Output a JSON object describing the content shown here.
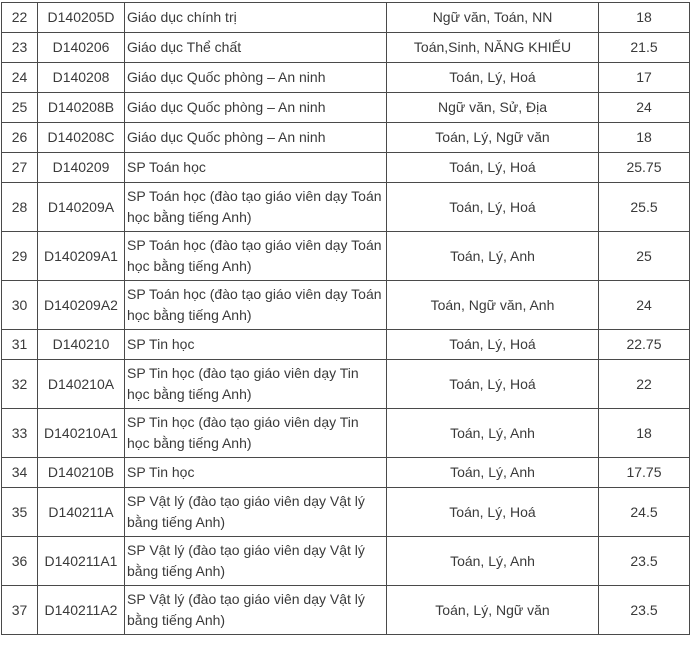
{
  "theme": {
    "border_color": "#4a4a4a",
    "text_color": "#3a3a3a",
    "background_color": "#ffffff"
  },
  "table": {
    "description": "university-admission-score-table",
    "columns": [
      "stt",
      "code",
      "major",
      "subjects",
      "score"
    ],
    "rows": [
      {
        "stt": "22",
        "code": "D140205D",
        "major": "Giáo dục chính trị",
        "subjects": "Ngữ văn, Toán, NN",
        "score": "18"
      },
      {
        "stt": "23",
        "code": "D140206",
        "major": "Giáo dục Thể chất",
        "subjects": "Toán,Sinh, NĂNG KHIẾU",
        "score": "21.5"
      },
      {
        "stt": "24",
        "code": "D140208",
        "major": "Giáo dục Quốc phòng – An ninh",
        "subjects": "Toán, Lý, Hoá",
        "score": "17"
      },
      {
        "stt": "25",
        "code": "D140208B",
        "major": "Giáo dục Quốc phòng – An ninh",
        "subjects": "Ngữ văn, Sử, Địa",
        "score": "24"
      },
      {
        "stt": "26",
        "code": "D140208C",
        "major": "Giáo dục Quốc phòng – An ninh",
        "subjects": "Toán, Lý, Ngữ văn",
        "score": "18"
      },
      {
        "stt": "27",
        "code": "D140209",
        "major": "SP Toán học",
        "subjects": "Toán, Lý, Hoá",
        "score": "25.75"
      },
      {
        "stt": "28",
        "code": "D140209A",
        "major": "SP Toán học (đào tạo giáo viên dạy Toán học bằng tiếng Anh)",
        "subjects": "Toán, Lý, Hoá",
        "score": "25.5"
      },
      {
        "stt": "29",
        "code": "D140209A1",
        "major": "SP Toán học (đào tạo giáo viên dạy Toán học bằng tiếng Anh)",
        "subjects": "Toán, Lý, Anh",
        "score": "25"
      },
      {
        "stt": "30",
        "code": "D140209A2",
        "major": "SP Toán học (đào tạo giáo viên dạy Toán học bằng tiếng Anh)",
        "subjects": "Toán, Ngữ văn, Anh",
        "score": "24"
      },
      {
        "stt": "31",
        "code": "D140210",
        "major": "SP Tin học",
        "subjects": "Toán, Lý, Hoá",
        "score": "22.75"
      },
      {
        "stt": "32",
        "code": "D140210A",
        "major": "SP Tin học (đào tạo giáo viên dạy Tin học bằng tiếng Anh)",
        "subjects": "Toán, Lý, Hoá",
        "score": "22"
      },
      {
        "stt": "33",
        "code": "D140210A1",
        "major": "SP Tin học (đào tạo giáo viên dạy Tin học bằng tiếng Anh)",
        "subjects": "Toán, Lý, Anh",
        "score": "18"
      },
      {
        "stt": "34",
        "code": "D140210B",
        "major": "SP Tin học",
        "subjects": "Toán, Lý, Anh",
        "score": "17.75"
      },
      {
        "stt": "35",
        "code": "D140211A",
        "major": "SP Vật lý (đào tạo giáo viên dạy Vật lý bằng tiếng Anh)",
        "subjects": "Toán, Lý, Hoá",
        "score": "24.5"
      },
      {
        "stt": "36",
        "code": "D140211A1",
        "major": "SP Vật lý (đào tạo giáo viên dạy Vật lý bằng tiếng Anh)",
        "subjects": "Toán, Lý, Anh",
        "score": "23.5"
      },
      {
        "stt": "37",
        "code": "D140211A2",
        "major": "SP Vật lý (đào tạo giáo viên dạy Vật lý bằng tiếng Anh)",
        "subjects": "Toán, Lý, Ngữ văn",
        "score": "23.5"
      }
    ]
  }
}
